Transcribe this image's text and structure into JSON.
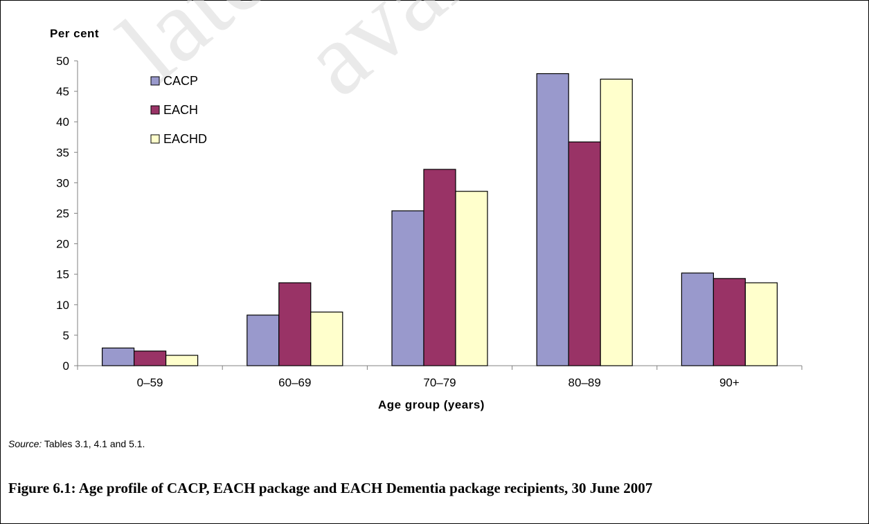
{
  "chart_data": {
    "type": "bar",
    "ylabel": "Per cent",
    "xlabel": "Age group (years)",
    "categories": [
      "0–59",
      "60–69",
      "70–79",
      "80–89",
      "90+"
    ],
    "series": [
      {
        "name": "CACP",
        "values": [
          2.9,
          8.3,
          25.4,
          47.9,
          15.2
        ],
        "color": "#9999cc"
      },
      {
        "name": "EACH",
        "values": [
          2.4,
          13.6,
          32.2,
          36.7,
          14.3
        ],
        "color": "#993366"
      },
      {
        "name": "EACHD",
        "values": [
          1.7,
          8.8,
          28.6,
          47.0,
          13.6
        ],
        "color": "#ffffcc"
      }
    ],
    "ylim": [
      0,
      50
    ],
    "yticks": [
      0,
      5,
      10,
      15,
      20,
      25,
      30,
      35,
      40,
      45,
      50
    ],
    "grid": false,
    "legend_position": "top-left"
  },
  "source": {
    "label": "Source:",
    "text": " Tables 3.1, 4.1 and 5.1."
  },
  "caption": "Figure 6.1: Age profile of CACP, EACH package and EACH Dementia package recipients, 30 June 2007",
  "watermark": {
    "text1": "late",
    "text2": "avai",
    "color": "#d9d9d9"
  }
}
